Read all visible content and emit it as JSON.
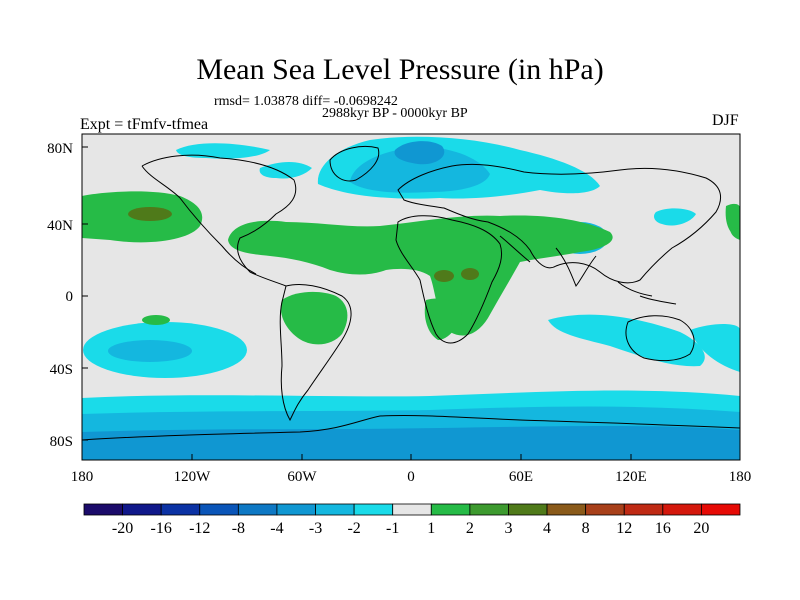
{
  "title": "Mean Sea Level Pressure (in hPa)",
  "stats": {
    "rmsd_diff": "rmsd= 1.03878 diff= -0.0698242",
    "period": "2988kyr BP - 0000kyr BP"
  },
  "experiment": "Expt = tFmfv-tfmea",
  "season": "DJF",
  "lat_ticks": [
    "80N",
    "40N",
    "0",
    "40S",
    "80S"
  ],
  "lon_ticks": [
    "180",
    "120W",
    "60W",
    "0",
    "60E",
    "120E",
    "180"
  ],
  "colorbar": {
    "labels": [
      "-20",
      "-16",
      "-12",
      "-8",
      "-4",
      "-3",
      "-2",
      "-1",
      "1",
      "2",
      "3",
      "4",
      "8",
      "12",
      "16",
      "20"
    ],
    "colors": [
      "#1b0b6a",
      "#10188a",
      "#0b32a4",
      "#0a55b8",
      "#0e78c4",
      "#1097d2",
      "#14b7df",
      "#1adbe9",
      "#e6e6e6",
      "#26bb47",
      "#3d9a2f",
      "#4f7a1a",
      "#8a5a1a",
      "#a8401a",
      "#bf2a14",
      "#d4180c",
      "#e60a05"
    ]
  },
  "map_colors": {
    "background": "#e6e6e6",
    "neg1": "#1adbe9",
    "neg2": "#14b7df",
    "neg3": "#1097d2",
    "neg4": "#0e78c4",
    "neg8": "#0a55b8",
    "pos1": "#26bb47",
    "pos3": "#4f7a1a"
  }
}
